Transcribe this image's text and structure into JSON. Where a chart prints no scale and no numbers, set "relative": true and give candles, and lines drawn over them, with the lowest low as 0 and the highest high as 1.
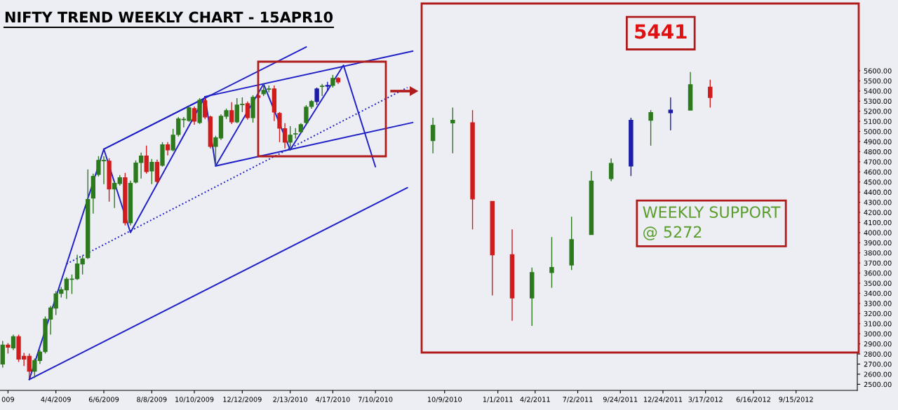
{
  "chart_data": [
    {
      "type": "candlestick",
      "title": "NIFTY TREND WEEKLY CHART - 15APR10",
      "categories": [
        null,
        "009",
        null,
        null,
        null,
        null,
        null,
        null,
        null,
        null,
        "4/4/2009",
        null,
        null,
        null,
        null,
        null,
        null,
        null,
        null,
        "6/6/2009",
        null,
        null,
        null,
        null,
        null,
        null,
        null,
        null,
        "8/8/2009",
        null,
        null,
        null,
        null,
        null,
        null,
        null,
        "10/10/2009",
        null,
        null,
        null,
        null,
        null,
        null,
        null,
        null,
        "12/12/2009",
        null,
        null,
        null,
        null,
        null,
        null,
        null,
        null,
        "2/13/2010",
        null,
        null,
        null,
        null,
        null,
        null,
        null,
        "4/17/2010",
        null,
        null,
        null,
        null,
        null,
        null,
        null,
        "7/10/2010",
        null,
        null,
        null,
        null,
        null,
        null,
        null,
        null,
        null,
        null,
        null,
        null,
        "10/9/2010",
        null,
        null,
        null,
        null,
        null,
        null,
        null,
        null,
        null,
        "1/1/2011",
        null,
        null,
        null,
        null,
        null,
        null,
        "4/2/2011",
        null,
        null,
        null,
        null,
        null,
        null,
        null,
        "7/2/2011",
        null,
        null,
        null,
        null,
        null,
        null,
        null,
        "9/24/2011",
        null,
        null,
        null,
        null,
        null,
        null,
        null,
        "12/24/2011",
        null,
        null,
        null,
        null,
        null,
        null,
        null,
        "3/17/2012",
        null,
        null,
        null,
        null,
        null,
        null,
        null,
        null,
        "6/16/2012",
        null,
        null,
        null,
        null,
        null,
        null,
        null,
        "9/15/2012",
        null,
        null,
        null,
        null,
        null,
        null,
        null,
        null,
        null,
        null,
        null
      ],
      "ohlc": [
        [
          2701,
          2929,
          2666,
          2887
        ],
        [
          2887,
          2908,
          2804,
          2867
        ],
        [
          2860,
          2991,
          2839,
          2970
        ],
        [
          2970,
          2991,
          2721,
          2749
        ],
        [
          2777,
          2811,
          2680,
          2749
        ],
        [
          2777,
          2804,
          2562,
          2631
        ],
        [
          2631,
          2756,
          2562,
          2735
        ],
        [
          2735,
          2839,
          2701,
          2818
        ],
        [
          2825,
          3171,
          2804,
          3144
        ],
        [
          3144,
          3275,
          2991,
          3254
        ],
        [
          3254,
          3420,
          3185,
          3393
        ],
        [
          3400,
          3462,
          3358,
          3434
        ],
        [
          3434,
          3559,
          3344,
          3538
        ],
        [
          3538,
          3586,
          3393,
          3540
        ],
        [
          3545,
          3780,
          3531,
          3690
        ],
        [
          3690,
          3773,
          3586,
          3739
        ],
        [
          3752,
          4624,
          3739,
          4327
        ],
        [
          4341,
          4583,
          4188,
          4555
        ],
        [
          4576,
          4756,
          4555,
          4714
        ],
        [
          4710,
          4756,
          4479,
          4714
        ],
        [
          4707,
          4735,
          4306,
          4431
        ],
        [
          4431,
          4514,
          4244,
          4486
        ],
        [
          4486,
          4569,
          4465,
          4541
        ],
        [
          4541,
          4590,
          4071,
          4098
        ],
        [
          4098,
          4514,
          4071,
          4486
        ],
        [
          4500,
          4714,
          4486,
          4687
        ],
        [
          4694,
          4790,
          4534,
          4756
        ],
        [
          4756,
          4860,
          4583,
          4604
        ],
        [
          4611,
          4728,
          4479,
          4694
        ],
        [
          4694,
          4721,
          4486,
          4507
        ],
        [
          4666,
          4894,
          4652,
          4867
        ],
        [
          4867,
          4894,
          4763,
          4818
        ],
        [
          4818,
          5026,
          4804,
          4963
        ],
        [
          4970,
          5143,
          4950,
          5123
        ],
        [
          5116,
          5143,
          5040,
          5120
        ],
        [
          5109,
          5261,
          5095,
          5233
        ],
        [
          5226,
          5247,
          5067,
          5102
        ],
        [
          5088,
          5330,
          5074,
          5309
        ],
        [
          5303,
          5330,
          5123,
          5143
        ],
        [
          5143,
          5157,
          4832,
          4853
        ],
        [
          4853,
          4957,
          4659,
          4936
        ],
        [
          4936,
          5171,
          4915,
          5150
        ],
        [
          5150,
          5226,
          5123,
          5206
        ],
        [
          5206,
          5289,
          5074,
          5095
        ],
        [
          5095,
          5330,
          5081,
          5261
        ],
        [
          5265,
          5337,
          5192,
          5268
        ],
        [
          5275,
          5296,
          5116,
          5136
        ],
        [
          5136,
          5358,
          5088,
          5337
        ],
        [
          5351,
          5372,
          5316,
          5337
        ],
        [
          5372,
          5476,
          5351,
          5406
        ],
        [
          5418,
          5455,
          5386,
          5420
        ],
        [
          5420,
          5455,
          5102,
          5192
        ],
        [
          5178,
          5192,
          4894,
          5033
        ],
        [
          5026,
          5081,
          4832,
          4894
        ],
        [
          4894,
          5053,
          4825,
          4963
        ],
        [
          4975,
          5033,
          4929,
          4977
        ],
        [
          4998,
          5081,
          4984,
          5067
        ],
        [
          5088,
          5261,
          5074,
          5240
        ],
        [
          5247,
          5310,
          5226,
          5296
        ],
        [
          5296,
          5434,
          5261,
          5420
        ],
        [
          5445,
          5469,
          5351,
          5448
        ],
        [
          5448,
          5490,
          5400,
          5455
        ],
        [
          5455,
          5559,
          5434,
          5524
        ],
        [
          5524,
          5538,
          5469,
          5490
        ],
        null,
        null,
        null,
        null,
        null,
        null,
        null,
        null,
        null,
        null,
        null,
        null,
        null,
        null,
        null,
        null,
        null,
        null,
        null,
        null,
        null,
        null,
        null,
        null,
        null,
        null,
        null,
        null,
        null,
        null,
        null,
        null,
        null,
        null,
        null,
        null,
        null,
        null,
        null,
        null,
        null,
        null,
        null,
        null,
        null,
        null,
        null,
        null,
        null,
        null,
        null,
        null,
        null,
        null,
        null,
        null,
        null,
        null,
        null,
        null,
        null,
        null,
        null,
        null,
        null,
        null,
        null,
        null,
        null,
        null,
        null,
        null,
        null,
        null,
        null,
        null,
        null,
        null,
        null,
        null,
        null,
        null,
        null,
        null,
        null,
        null,
        null,
        null,
        null,
        null,
        null,
        null,
        null,
        null,
        null,
        null,
        null
      ],
      "colors": [
        "#2d7a1e",
        "#d01c1c",
        "#2d7a1e",
        "#d01c1c",
        "#d01c1c",
        "#d01c1c",
        "#2d7a1e",
        "#2d7a1e",
        "#2d7a1e",
        "#2d7a1e",
        "#2d7a1e",
        "#2d7a1e",
        "#2d7a1e",
        "#2d7a1e",
        "#2d7a1e",
        "#2d7a1e",
        "#2d7a1e",
        "#2d7a1e",
        "#2d7a1e",
        "#2d7a1e",
        "#d01c1c",
        "#2d7a1e",
        "#2d7a1e",
        "#d01c1c",
        "#2d7a1e",
        "#2d7a1e",
        "#2d7a1e",
        "#d01c1c",
        "#2d7a1e",
        "#d01c1c",
        "#2d7a1e",
        "#d01c1c",
        "#2d7a1e",
        "#2d7a1e",
        "#2d7a1e",
        "#2d7a1e",
        "#d01c1c",
        "#2d7a1e",
        "#d01c1c",
        "#d01c1c",
        "#2d7a1e",
        "#2d7a1e",
        "#2d7a1e",
        "#d01c1c",
        "#2d7a1e",
        "#2d7a1e",
        "#d01c1c",
        "#2d7a1e",
        "#d01c1c",
        "#2d7a1e",
        "#2d7a1e",
        "#d01c1c",
        "#d01c1c",
        "#d01c1c",
        "#2d7a1e",
        "#2d7a1e",
        "#2d7a1e",
        "#2d7a1e",
        "#2d7a1e",
        "#1c1ca8",
        "#2d7a1e",
        "#1c1ca8",
        "#2d7a1e",
        "#d01c1c",
        null,
        null,
        null,
        null,
        null,
        null,
        null,
        null,
        null,
        null,
        null,
        null,
        null,
        null,
        null,
        null,
        null,
        null,
        null,
        null,
        null,
        null,
        null,
        null,
        null,
        null,
        null,
        null,
        null,
        null,
        null,
        null,
        null,
        null,
        null,
        null,
        null,
        null,
        null,
        null,
        null,
        null,
        null,
        null,
        null,
        null,
        null,
        null,
        null,
        null,
        null,
        null,
        null,
        null,
        null,
        null,
        null,
        null,
        null,
        null,
        null,
        null,
        null,
        null,
        null,
        null,
        null,
        null,
        null,
        null,
        null,
        null,
        null,
        null,
        null,
        null,
        null,
        null,
        null,
        null,
        null,
        null,
        null,
        null,
        null,
        null,
        null,
        null,
        null,
        null,
        null,
        null,
        null,
        null,
        null,
        null,
        null
      ],
      "series": [
        {
          "type": "line",
          "color": "#2020c8",
          "line_style": "solid",
          "values": [
            null,
            null,
            null,
            null,
            null,
            2548,
            null,
            null,
            null,
            null,
            null,
            null,
            null,
            null,
            null,
            null,
            null,
            null,
            null,
            4825,
            null,
            null,
            null,
            null,
            4001,
            null,
            null,
            null,
            null,
            null,
            null,
            null,
            null,
            null,
            null,
            null,
            null,
            null,
            5344,
            null,
            4659,
            null,
            null,
            null,
            null,
            null,
            null,
            null,
            null,
            5469,
            null,
            null,
            null,
            null,
            4818,
            null,
            null,
            null,
            null,
            null,
            null,
            null,
            null,
            null,
            5655,
            null,
            null,
            null,
            null,
            null,
            4652,
            null,
            null,
            null,
            null,
            null,
            null,
            null,
            null,
            null,
            null,
            null,
            null,
            null,
            null,
            null,
            null,
            null,
            null,
            null,
            null,
            null,
            null,
            null,
            null,
            null,
            null,
            null,
            null,
            null,
            null,
            null,
            null,
            null,
            null,
            null,
            null,
            null,
            null,
            null,
            null,
            null,
            null,
            null,
            null,
            null,
            null,
            null,
            null,
            null,
            null,
            null,
            null,
            null,
            null,
            null,
            null,
            null,
            null,
            null,
            null,
            null,
            null,
            null,
            null,
            null,
            null,
            null,
            null,
            null,
            null,
            null,
            null,
            null,
            null,
            null,
            null,
            null,
            null,
            null,
            null,
            null,
            null,
            null,
            null,
            null,
            null,
            null,
            null,
            null,
            null
          ]
        },
        {
          "type": "line",
          "color": "#2020c8",
          "line_style": "solid",
          "values": [
            null,
            null,
            null,
            null,
            null,
            null,
            null,
            null,
            null,
            null,
            null,
            null,
            null,
            null,
            null,
            null,
            null,
            null,
            null,
            4825,
            null,
            null,
            null,
            null,
            null,
            null,
            null,
            null,
            null,
            null,
            null,
            null,
            null,
            null,
            null,
            null,
            null,
            null,
            null,
            5358,
            null,
            null,
            null,
            null,
            null,
            null,
            null,
            null,
            null,
            null,
            null,
            null,
            null,
            null,
            null,
            null,
            null,
            null,
            null,
            null,
            null,
            null,
            null,
            null,
            null,
            null,
            null,
            null,
            null,
            null,
            null,
            null,
            null,
            null,
            null,
            null,
            null,
            null,
            null,
            null,
            null,
            null,
            null,
            null,
            null,
            null,
            null,
            null,
            null,
            null,
            null,
            null,
            null,
            null,
            null,
            null,
            null,
            null,
            null,
            null,
            null,
            null,
            null,
            null,
            null,
            null,
            null,
            null,
            null,
            null,
            null,
            null,
            null,
            null,
            null,
            null,
            null,
            null,
            null,
            null,
            null,
            null,
            null,
            null,
            null,
            null,
            null,
            null,
            null,
            null,
            null,
            null,
            null,
            null,
            null,
            null,
            null,
            null,
            null,
            null,
            null,
            null,
            null,
            null,
            null,
            null,
            null,
            null,
            null,
            null,
            null,
            null,
            null,
            null,
            null,
            null,
            null,
            null,
            null,
            null,
            null
          ]
        },
        {
          "type": "line",
          "color": "#2020c8",
          "line_style": "solid",
          "values": [
            null,
            null,
            null,
            null,
            null,
            null,
            null,
            null,
            null,
            null,
            null,
            null,
            null,
            null,
            null,
            null,
            null,
            null,
            null,
            null,
            null,
            null,
            null,
            null,
            null,
            null,
            null,
            null,
            null,
            null,
            null,
            null,
            null,
            null,
            null,
            null,
            null,
            null,
            5344,
            null,
            null,
            null,
            null,
            null,
            null,
            null,
            null,
            null,
            null,
            null,
            null,
            null,
            null,
            null,
            null,
            null,
            null,
            null,
            null,
            null,
            null,
            null,
            null,
            null,
            null,
            null,
            null,
            null,
            null,
            null,
            null,
            null,
            null,
            null,
            null,
            null,
            null,
            5794,
            null,
            null,
            null,
            null,
            null,
            null,
            null,
            null,
            null,
            null,
            null,
            null,
            null,
            null,
            null,
            null,
            null,
            null,
            null,
            null,
            null,
            null,
            null,
            null,
            null,
            null,
            null,
            null,
            null,
            null,
            null,
            null,
            null,
            null,
            null,
            null,
            null,
            null,
            null,
            null,
            null,
            null,
            null,
            null,
            null,
            null,
            null,
            null,
            null,
            null,
            null,
            null,
            null,
            null,
            null,
            null,
            null,
            null,
            null,
            null,
            null,
            null,
            null,
            null,
            null,
            null,
            null,
            null,
            null,
            null,
            null,
            null,
            null,
            null,
            null,
            null,
            null,
            null,
            null,
            null,
            null,
            null,
            null
          ]
        },
        {
          "type": "line",
          "color": "#2020c8",
          "line_style": "solid",
          "values": [
            null,
            null,
            null,
            null,
            null,
            null,
            null,
            null,
            null,
            null,
            null,
            null,
            null,
            null,
            null,
            null,
            null,
            null,
            null,
            null,
            null,
            null,
            null,
            null,
            null,
            null,
            null,
            null,
            null,
            null,
            null,
            null,
            null,
            null,
            null,
            null,
            null,
            null,
            null,
            null,
            4659,
            null,
            null,
            null,
            null,
            null,
            null,
            null,
            null,
            null,
            null,
            null,
            null,
            null,
            null,
            null,
            null,
            null,
            null,
            null,
            null,
            null,
            null,
            null,
            null,
            null,
            null,
            null,
            null,
            null,
            null,
            null,
            null,
            null,
            null,
            null,
            null,
            5088,
            null,
            null,
            null,
            null,
            null,
            null,
            null,
            null,
            null,
            null,
            null,
            null,
            null,
            null,
            null,
            null,
            null,
            null,
            null,
            null,
            null,
            null,
            null,
            null,
            null,
            null,
            null,
            null,
            null,
            null,
            null,
            null,
            null,
            null,
            null,
            null,
            null,
            null,
            null,
            null,
            null,
            null,
            null,
            null,
            null,
            null,
            null,
            null,
            null,
            null,
            null,
            null,
            null,
            null,
            null,
            null,
            null,
            null,
            null,
            null,
            null,
            null,
            null,
            null,
            null,
            null,
            null,
            null,
            null,
            null,
            null,
            null,
            null,
            null,
            null,
            null,
            null,
            null,
            null,
            null,
            null,
            null,
            null
          ]
        },
        {
          "type": "line",
          "color": "#2020c8",
          "line_style": "dotted",
          "values": [
            null,
            null,
            null,
            null,
            null,
            null,
            null,
            null,
            null,
            null,
            null,
            null,
            3690,
            null,
            null,
            null,
            null,
            null,
            null,
            null,
            null,
            null,
            null,
            null,
            null,
            null,
            null,
            null,
            null,
            null,
            null,
            null,
            null,
            null,
            null,
            null,
            null,
            null,
            null,
            null,
            null,
            null,
            null,
            null,
            null,
            null,
            null,
            null,
            null,
            null,
            null,
            null,
            null,
            null,
            null,
            null,
            null,
            null,
            null,
            null,
            null,
            null,
            null,
            null,
            null,
            null,
            null,
            null,
            null,
            null,
            null,
            null,
            null,
            null,
            null,
            null,
            5434,
            null,
            null,
            null,
            null,
            null,
            null,
            null,
            null,
            null,
            null,
            null,
            null,
            null,
            null,
            null,
            null,
            null,
            null,
            null,
            null,
            null,
            null,
            null,
            null,
            null,
            null,
            null,
            null,
            null,
            null,
            null,
            null,
            null,
            null,
            null,
            null,
            null,
            null,
            null,
            null,
            null,
            null,
            null,
            null,
            null,
            null,
            null,
            null,
            null,
            null,
            null,
            null,
            null,
            null,
            null,
            null,
            null,
            null,
            null,
            null,
            null,
            null,
            null,
            null,
            null,
            null,
            null,
            null,
            null,
            null,
            null,
            null,
            null,
            null,
            null,
            null,
            null,
            null,
            null,
            null,
            null,
            null,
            null,
            null
          ]
        },
        {
          "type": "line",
          "color": "#2020c8",
          "line_style": "solid",
          "values": [
            null,
            null,
            null,
            null,
            null,
            2548,
            null,
            null,
            null,
            null,
            null,
            null,
            null,
            null,
            null,
            null,
            null,
            null,
            null,
            null,
            null,
            null,
            null,
            null,
            null,
            null,
            null,
            null,
            null,
            null,
            null,
            null,
            null,
            null,
            null,
            null,
            null,
            null,
            null,
            null,
            null,
            null,
            null,
            null,
            null,
            null,
            null,
            null,
            null,
            null,
            null,
            null,
            null,
            null,
            null,
            null,
            null,
            null,
            null,
            null,
            null,
            null,
            null,
            null,
            null,
            null,
            null,
            null,
            null,
            null,
            null,
            null,
            null,
            null,
            null,
            null,
            4444,
            null,
            null,
            null,
            null,
            null,
            null,
            null,
            null,
            null,
            null,
            null,
            null,
            null,
            null,
            null,
            null,
            null,
            null,
            null,
            null,
            null,
            null,
            null,
            null,
            null,
            null,
            null,
            null,
            null,
            null,
            null,
            null,
            null,
            null,
            null,
            null,
            null,
            null,
            null,
            null,
            null,
            null,
            null,
            null,
            null,
            null,
            null,
            null,
            null,
            null,
            null,
            null,
            null,
            null,
            null,
            null,
            null,
            null,
            null,
            null,
            null,
            null,
            null,
            null,
            null,
            null,
            null,
            null,
            null,
            null,
            null,
            null,
            null,
            null,
            null,
            null,
            null,
            null,
            null,
            null,
            null,
            null,
            null,
            null
          ]
        },
        {
          "type": "line",
          "color": "#2020c8",
          "line_style": "solid",
          "values": [
            null,
            null,
            null,
            null,
            null,
            null,
            null,
            null,
            null,
            null,
            null,
            null,
            null,
            null,
            null,
            null,
            null,
            null,
            null,
            4825,
            null,
            null,
            null,
            null,
            null,
            null,
            null,
            null,
            null,
            null,
            null,
            null,
            null,
            null,
            null,
            null,
            null,
            null,
            null,
            null,
            null,
            null,
            null,
            null,
            null,
            null,
            null,
            null,
            null,
            null,
            null,
            null,
            null,
            null,
            null,
            null,
            null,
            5835,
            null,
            null,
            null,
            null,
            null,
            null,
            null,
            null,
            null,
            null,
            null,
            null,
            null,
            null,
            null,
            null,
            null,
            null,
            null,
            null,
            null,
            null,
            null,
            null,
            null,
            null,
            null,
            null,
            null,
            null,
            null,
            null,
            null,
            null,
            null,
            null,
            null,
            null,
            null,
            null,
            null,
            null,
            null,
            null,
            null,
            null,
            null,
            null,
            null,
            null,
            null,
            null,
            null,
            null,
            null,
            null,
            null,
            null,
            null,
            null,
            null,
            null,
            null,
            null,
            null,
            null,
            null,
            null,
            null,
            null,
            null,
            null,
            null,
            null,
            null,
            null,
            null,
            null,
            null,
            null,
            null,
            null,
            null,
            null,
            null,
            null,
            null,
            null,
            null,
            null,
            null,
            null,
            null,
            null,
            null,
            null,
            null,
            null,
            null,
            null,
            null,
            null,
            null
          ]
        }
      ],
      "ylim": [
        2440,
        6265
      ],
      "yticks": [
        {
          "value": 2500,
          "label": "2500.00"
        },
        {
          "value": 2600,
          "label": "2600.00"
        },
        {
          "value": 2700,
          "label": "2700.00"
        },
        {
          "value": 2800,
          "label": "2800.00"
        },
        {
          "value": 2900,
          "label": "2900.00"
        },
        {
          "value": 3000,
          "label": "3000.00"
        },
        {
          "value": 3100,
          "label": "3100.00"
        },
        {
          "value": 3200,
          "label": "3200.00"
        },
        {
          "value": 3300,
          "label": "3300.00"
        },
        {
          "value": 3400,
          "label": "3400.00"
        },
        {
          "value": 3500,
          "label": "3500.00"
        },
        {
          "value": 3600,
          "label": "3600.00"
        },
        {
          "value": 3700,
          "label": "3700.00"
        },
        {
          "value": 3800,
          "label": "3800.00"
        },
        {
          "value": 3900,
          "label": "3900.00"
        },
        {
          "value": 4000,
          "label": "4000.00"
        },
        {
          "value": 4100,
          "label": "4100.00"
        },
        {
          "value": 4200,
          "label": "4200.00"
        },
        {
          "value": 4300,
          "label": "4300.00"
        },
        {
          "value": 4400,
          "label": "4400.00"
        },
        {
          "value": 4500,
          "label": "4500.00"
        },
        {
          "value": 4600,
          "label": "4600.00"
        },
        {
          "value": 4700,
          "label": "4700.00"
        },
        {
          "value": 4800,
          "label": "4800.00"
        },
        {
          "value": 4900,
          "label": "4900.00"
        },
        {
          "value": 5000,
          "label": "5000.00"
        },
        {
          "value": 5100,
          "label": "5100.00"
        },
        {
          "value": 5200,
          "label": "5200.00"
        },
        {
          "value": 5300,
          "label": "5300.00"
        },
        {
          "value": 5400,
          "label": "5400.00"
        },
        {
          "value": 5500,
          "label": "5500.00"
        },
        {
          "value": 5600,
          "label": "5600.00"
        }
      ]
    },
    {
      "type": "candlestick",
      "relative": true,
      "categories": [
        null,
        null,
        null,
        null,
        null,
        null,
        null,
        null,
        null,
        null,
        null,
        null,
        null,
        null,
        null
      ],
      "ohlc": [
        [
          0.73,
          0.82,
          0.68,
          0.79
        ],
        [
          0.8,
          0.86,
          0.68,
          0.81
        ],
        [
          0.8,
          0.85,
          0.38,
          0.5
        ],
        [
          0.49,
          0.49,
          0.12,
          0.28
        ],
        [
          0.28,
          0.38,
          0.02,
          0.11
        ],
        [
          0.11,
          0.23,
          0,
          0.21
        ],
        [
          0.21,
          0.35,
          0.15,
          0.23
        ],
        [
          0.24,
          0.43,
          0.22,
          0.34
        ],
        [
          0.36,
          0.61,
          0.36,
          0.57
        ],
        [
          0.58,
          0.66,
          0.57,
          0.64
        ],
        [
          0.63,
          0.82,
          0.59,
          0.81
        ],
        [
          0.81,
          0.85,
          0.71,
          0.84
        ],
        [
          0.84,
          0.9,
          0.77,
          0.85
        ],
        [
          0.85,
          1,
          0.85,
          0.95
        ],
        [
          0.94,
          0.97,
          0.86,
          0.9
        ]
      ],
      "colors": [
        "#2d7a1e",
        "#2d7a1e",
        "#d01c1c",
        "#d01c1c",
        "#d01c1c",
        "#2d7a1e",
        "#2d7a1e",
        "#2d7a1e",
        "#2d7a1e",
        "#2d7a1e",
        "#1c1ca8",
        "#2d7a1e",
        "#1c1ca8",
        "#2d7a1e",
        "#d01c1c"
      ],
      "annotations": [
        "5441",
        "WEEKLY SUPPORT\n@ 5272"
      ]
    }
  ]
}
